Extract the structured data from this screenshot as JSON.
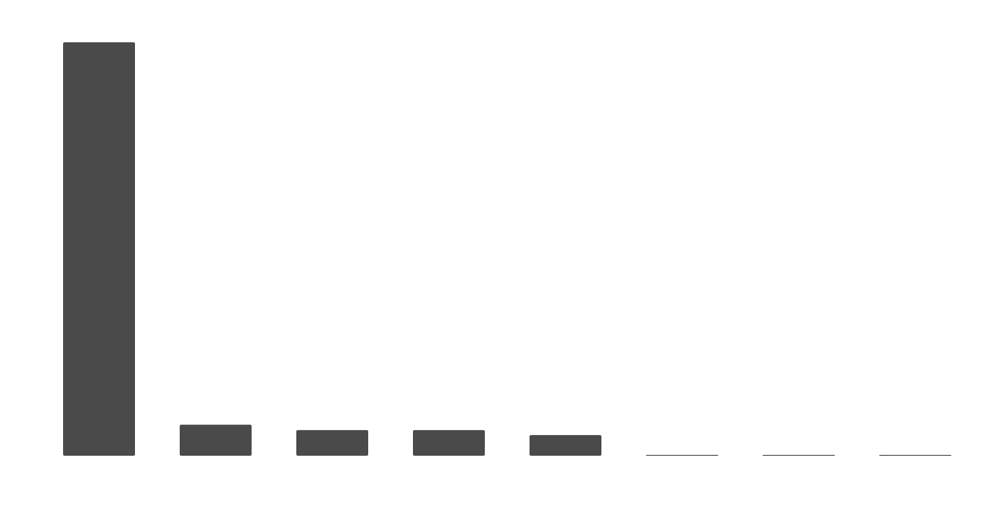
{
  "chart_data": {
    "type": "bar",
    "title": "",
    "xlabel": "",
    "ylabel": "",
    "categories": [
      "",
      "",
      "",
      "",
      "",
      "",
      "",
      ""
    ],
    "values": [
      100,
      7.5,
      6.2,
      6.2,
      5.0,
      0.2,
      0.2,
      0.2
    ],
    "ylim": [
      0,
      100
    ],
    "grid": false,
    "legend": "none",
    "bar_color": "#4a4a4a",
    "background": "#ffffff"
  }
}
